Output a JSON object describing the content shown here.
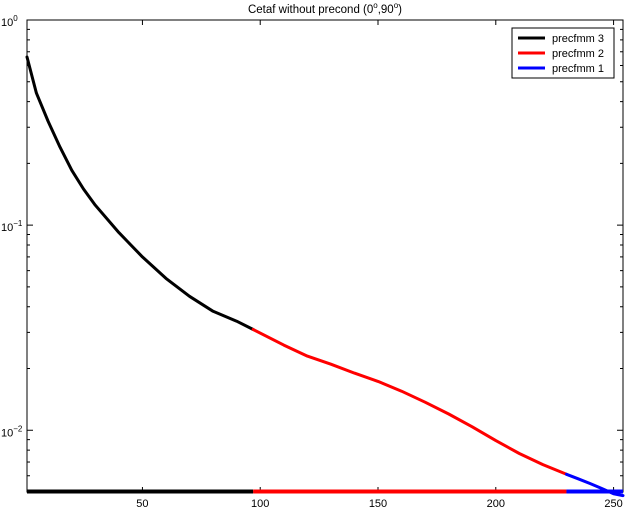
{
  "chart_data": {
    "type": "line",
    "title": "Cetaf without precond (0°,90°)",
    "title_parts": {
      "prefix": "Cetaf without precond (0",
      "sup1": "o",
      "mid": ",90",
      "sup2": "o",
      "suffix": ")"
    },
    "y_scale": "log",
    "xlim": [
      1,
      254
    ],
    "ylim": [
      0.005,
      1
    ],
    "x_ticks": [
      {
        "value": 50,
        "label": "50"
      },
      {
        "value": 100,
        "label": "100"
      },
      {
        "value": 150,
        "label": "150"
      },
      {
        "value": 200,
        "label": "200"
      },
      {
        "value": 250,
        "label": "250"
      }
    ],
    "y_ticks": [
      {
        "value": 1,
        "base": "10",
        "exp": "0"
      },
      {
        "value": 0.1,
        "base": "10",
        "exp": "−1"
      },
      {
        "value": 0.01,
        "base": "10",
        "exp": "−2"
      }
    ],
    "legend_position": "top-right",
    "series": [
      {
        "name": "precfmm 3",
        "color": "#000000",
        "x": [
          1,
          5,
          10,
          15,
          20,
          25,
          30,
          40,
          50,
          60,
          70,
          80,
          90,
          97
        ],
        "y": [
          0.66,
          0.44,
          0.32,
          0.24,
          0.185,
          0.15,
          0.125,
          0.092,
          0.07,
          0.055,
          0.045,
          0.038,
          0.034,
          0.031
        ]
      },
      {
        "name": "precfmm 2",
        "color": "#ff0000",
        "x": [
          97,
          110,
          120,
          130,
          140,
          150,
          160,
          170,
          180,
          190,
          200,
          210,
          220,
          230
        ],
        "y": [
          0.031,
          0.026,
          0.023,
          0.021,
          0.019,
          0.0173,
          0.0155,
          0.0137,
          0.012,
          0.0104,
          0.0089,
          0.0077,
          0.0068,
          0.0061
        ]
      },
      {
        "name": "precfmm 1",
        "color": "#0000ff",
        "x": [
          230,
          235,
          240,
          245,
          250,
          254
        ],
        "y": [
          0.0061,
          0.0058,
          0.0055,
          0.0052,
          0.0049,
          0.0048
        ]
      }
    ],
    "baseline_segments": [
      {
        "color": "#000000",
        "x": [
          1,
          97
        ]
      },
      {
        "color": "#ff0000",
        "x": [
          97,
          230
        ]
      },
      {
        "color": "#0000ff",
        "x": [
          230,
          254
        ]
      }
    ]
  }
}
